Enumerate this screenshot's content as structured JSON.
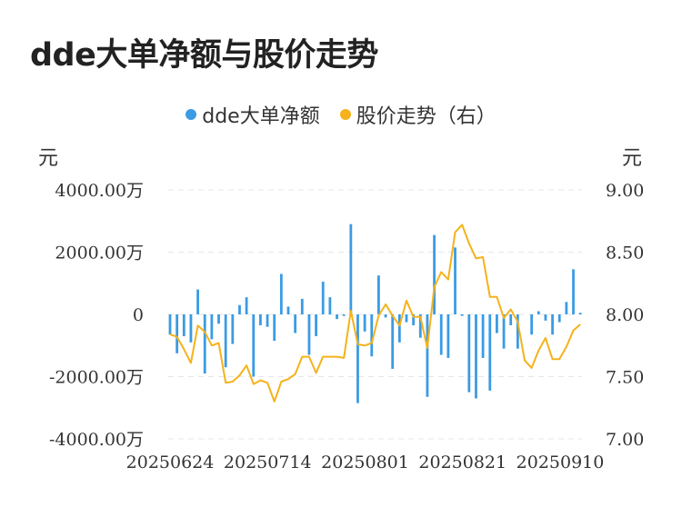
{
  "chart_data": {
    "type": "bar+line",
    "title": "dde大单净额与股价走势",
    "legend": [
      "dde大单净额",
      "股价走势（右）"
    ],
    "legend_position": "top-center",
    "left_unit": "元",
    "right_unit": "元",
    "y_left": {
      "min": -4000,
      "max": 4000,
      "ticks": [
        "4000.00万",
        "2000.00万",
        "0",
        "-2000.00万",
        "-4000.00万"
      ]
    },
    "y_right": {
      "min": 7.0,
      "max": 9.0,
      "ticks": [
        "9.00",
        "8.50",
        "8.00",
        "7.50",
        "7.00"
      ]
    },
    "x_tick_labels": [
      "20250624",
      "20250714",
      "20250801",
      "20250821",
      "20250910"
    ],
    "grid": true,
    "colors": {
      "bar": "#3b9be3",
      "line": "#f5b21b"
    },
    "series": [
      {
        "name": "dde大单净额",
        "values": [
          -650,
          -1250,
          -700,
          -900,
          800,
          -1900,
          -800,
          -300,
          -1700,
          -950,
          300,
          550,
          -2000,
          -350,
          -400,
          -850,
          1300,
          250,
          -600,
          500,
          -1300,
          -700,
          1050,
          550,
          -150,
          -50,
          2900,
          -2850,
          -550,
          -1350,
          1250,
          -100,
          -1750,
          -900,
          -250,
          -350,
          -750,
          -2650,
          2550,
          -1300,
          -1400,
          2150,
          -50,
          -2500,
          -2700,
          -1400,
          -2450,
          -600,
          -1100,
          -350,
          -1100,
          0,
          -650,
          100,
          -200,
          -650,
          -250,
          400,
          1450,
          50
        ]
      },
      {
        "name": "股价走势（右）",
        "values": [
          7.84,
          7.82,
          7.72,
          7.61,
          7.91,
          7.86,
          7.75,
          7.77,
          7.45,
          7.46,
          7.51,
          7.59,
          7.44,
          7.47,
          7.45,
          7.3,
          7.46,
          7.48,
          7.52,
          7.66,
          7.66,
          7.53,
          7.66,
          7.66,
          7.66,
          7.65,
          8.03,
          7.76,
          7.75,
          7.77,
          7.99,
          8.08,
          7.99,
          7.91,
          8.11,
          7.98,
          7.98,
          7.73,
          8.22,
          8.34,
          8.28,
          8.66,
          8.72,
          8.57,
          8.45,
          8.46,
          8.14,
          8.14,
          7.97,
          8.04,
          7.94,
          7.63,
          7.57,
          7.71,
          7.81,
          7.64,
          7.64,
          7.74,
          7.87,
          7.92
        ]
      }
    ]
  }
}
